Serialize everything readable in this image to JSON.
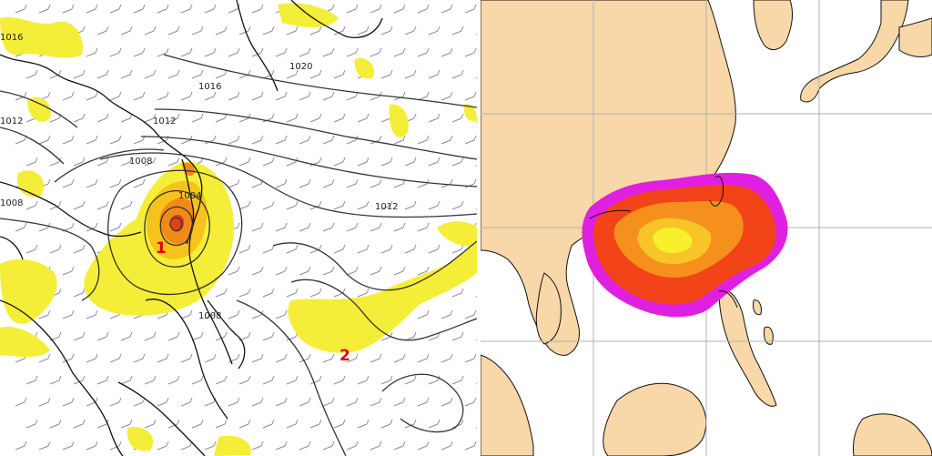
{
  "left_map": {
    "isobar_labels": [
      "1016",
      "1020",
      "1016",
      "1012",
      "1012",
      "1008",
      "1004",
      "1008",
      "1012",
      "1008"
    ],
    "markers": [
      "1",
      "2"
    ],
    "colors": {
      "land_outline": "#111111",
      "isobar": "#333333",
      "rain_light": "#f5ee38",
      "rain_medium": "#f6c21c",
      "rain_heavy": "#f08a18",
      "rain_core": "#e0401a",
      "marker": "#e00000",
      "wind_barb": "#8a8aa8"
    }
  },
  "right_map": {
    "colors": {
      "land": "#f8d7a8",
      "sea": "#ffffff",
      "gridline": "#b0b0b0",
      "coast": "#111111",
      "outer_band": "#e020e0",
      "red_band": "#f24418",
      "orange_band": "#f6901c",
      "yellow_band": "#f8c428",
      "core": "#f8f02a"
    }
  }
}
